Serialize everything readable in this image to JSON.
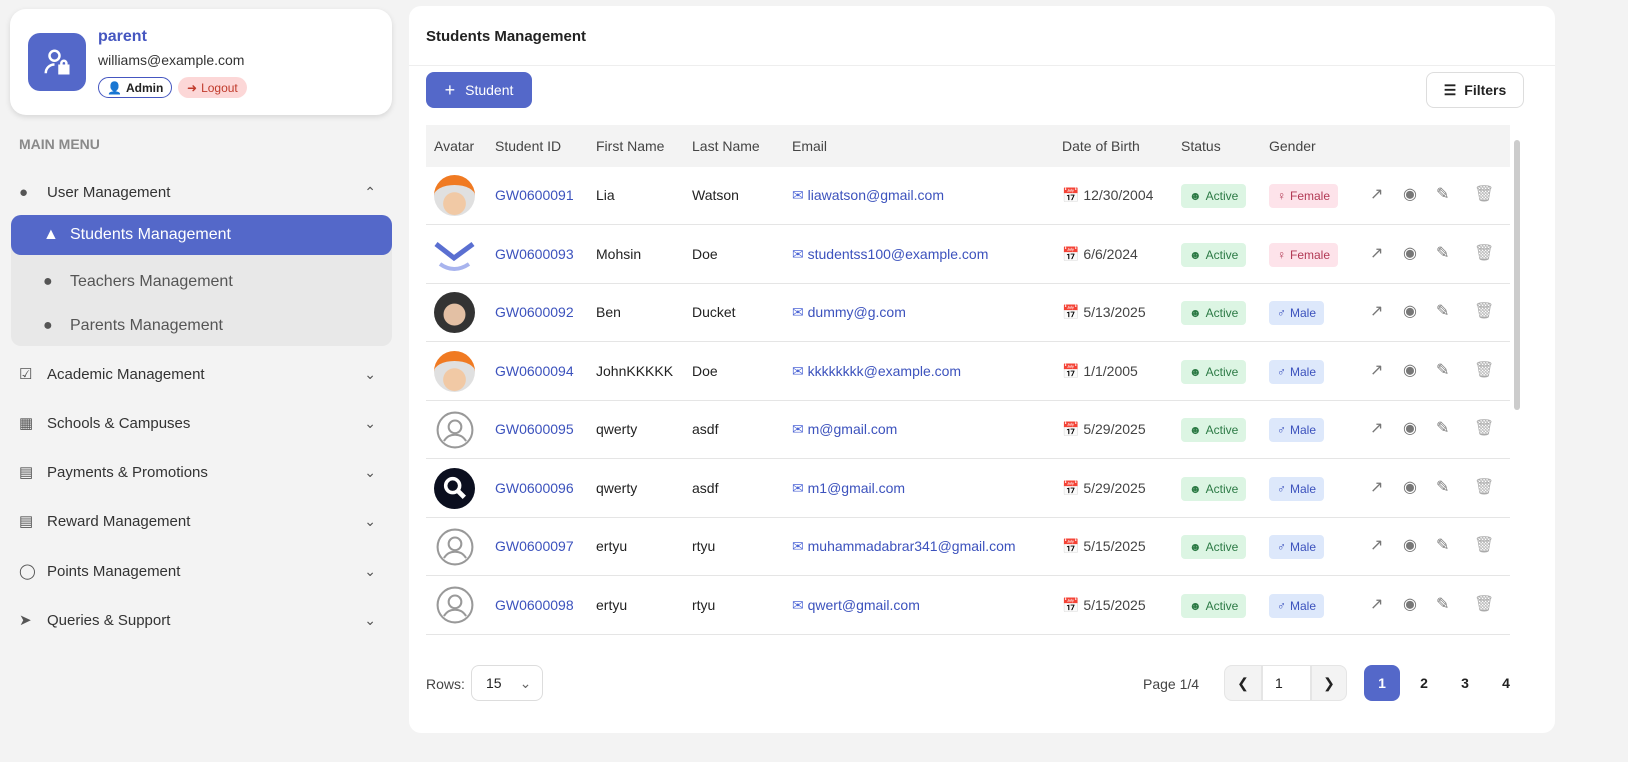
{
  "profile": {
    "name": "parent",
    "email": "williams@example.com",
    "role": "Admin",
    "logout": "Logout"
  },
  "sidebar": {
    "heading": "MAIN MENU",
    "items": [
      {
        "label": "User Management",
        "icon": "user-icon",
        "expanded": true
      },
      {
        "label": "Academic Management",
        "icon": "clipboard-check-icon"
      },
      {
        "label": "Schools & Campuses",
        "icon": "building-icon"
      },
      {
        "label": "Payments & Promotions",
        "icon": "money-icon"
      },
      {
        "label": "Reward Management",
        "icon": "gift-icon"
      },
      {
        "label": "Points Management",
        "icon": "coins-icon"
      },
      {
        "label": "Queries & Support",
        "icon": "send-icon"
      }
    ],
    "subitems": [
      {
        "label": "Students Management",
        "selected": true
      },
      {
        "label": "Teachers Management"
      },
      {
        "label": "Parents Management"
      }
    ]
  },
  "main": {
    "title": "Students Management",
    "add_label": "Student",
    "filters_label": "Filters",
    "columns": [
      "Avatar",
      "Student ID",
      "First Name",
      "Last Name",
      "Email",
      "Date of Birth",
      "Status",
      "Gender"
    ],
    "rows": [
      {
        "avatar": "photo-orange-cap",
        "id": "GW0600091",
        "first": "Lia",
        "last": "Watson",
        "email": "liawatson@gmail.com",
        "dob": "12/30/2004",
        "status": "Active",
        "gender": "Female"
      },
      {
        "avatar": "logo-chevron",
        "id": "GW0600093",
        "first": "Mohsin",
        "last": "Doe",
        "email": "studentss100@example.com",
        "dob": "6/6/2024",
        "status": "Active",
        "gender": "Female"
      },
      {
        "avatar": "photo-boy",
        "id": "GW0600092",
        "first": "Ben",
        "last": "Ducket",
        "email": "dummy@g.com",
        "dob": "5/13/2025",
        "status": "Active",
        "gender": "Male"
      },
      {
        "avatar": "photo-orange-cap",
        "id": "GW0600094",
        "first": "JohnKKKKK",
        "last": "Doe",
        "email": "kkkkkkkk@example.com",
        "dob": "1/1/2005",
        "status": "Active",
        "gender": "Male"
      },
      {
        "avatar": "default",
        "id": "GW0600095",
        "first": "qwerty",
        "last": "asdf",
        "email": "m@gmail.com",
        "dob": "5/29/2025",
        "status": "Active",
        "gender": "Male"
      },
      {
        "avatar": "search-logo",
        "id": "GW0600096",
        "first": "qwerty",
        "last": "asdf",
        "email": "m1@gmail.com",
        "dob": "5/29/2025",
        "status": "Active",
        "gender": "Male"
      },
      {
        "avatar": "default",
        "id": "GW0600097",
        "first": "ertyu",
        "last": "rtyu",
        "email": "muhammadabrar341@gmail.com",
        "dob": "5/15/2025",
        "status": "Active",
        "gender": "Male"
      },
      {
        "avatar": "default",
        "id": "GW0600098",
        "first": "ertyu",
        "last": "rtyu",
        "email": "qwert@gmail.com",
        "dob": "5/15/2025",
        "status": "Active",
        "gender": "Male"
      }
    ]
  },
  "footer": {
    "rows_label": "Rows:",
    "rows_value": "15",
    "page_info": "Page 1/4",
    "page_input": "1",
    "pages": [
      "1",
      "2",
      "3",
      "4"
    ],
    "current_page": "1"
  },
  "colors": {
    "accent": "#5468c9",
    "active_bg": "#dcf5e3",
    "female_bg": "#fde3ea",
    "male_bg": "#dde8fb"
  }
}
